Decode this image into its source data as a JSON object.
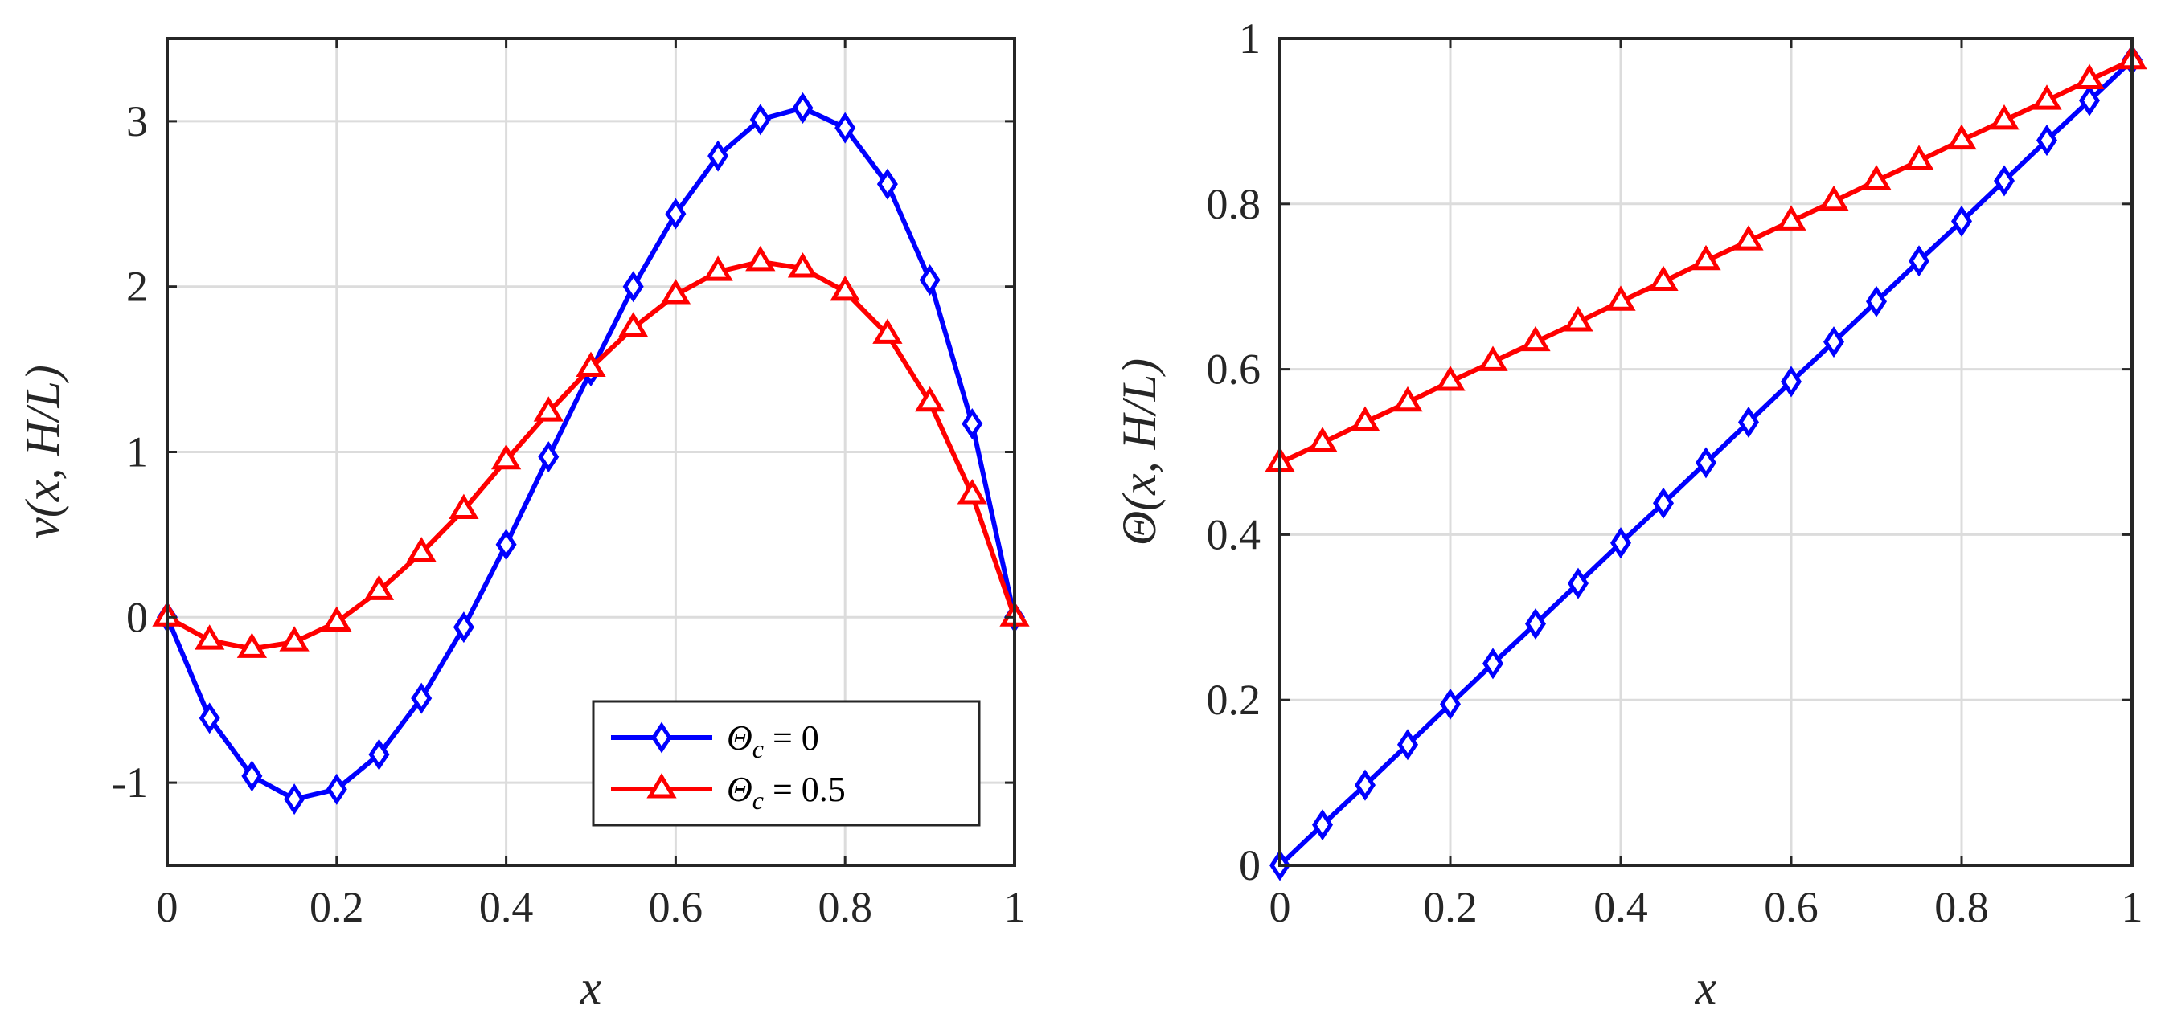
{
  "chart_data": [
    {
      "type": "line",
      "id": "left",
      "title": "",
      "xlabel": "x",
      "ylabel": "v(x, H/L)",
      "xlim": [
        0,
        1
      ],
      "ylim": [
        -1.5,
        3.5
      ],
      "xticks": [
        0,
        0.2,
        0.4,
        0.6,
        0.8,
        1
      ],
      "xtick_labels": [
        "0",
        "0.2",
        "0.4",
        "0.6",
        "0.8",
        "1"
      ],
      "yticks": [
        -1,
        0,
        1,
        2,
        3
      ],
      "ytick_labels": [
        "-1",
        "0",
        "1",
        "2",
        "3"
      ],
      "grid": true,
      "legend_position": "bottom-right",
      "x": [
        0,
        0.05,
        0.1,
        0.15,
        0.2,
        0.25,
        0.3,
        0.35,
        0.4,
        0.45,
        0.5,
        0.55,
        0.6,
        0.65,
        0.7,
        0.75,
        0.8,
        0.85,
        0.9,
        0.95,
        1
      ],
      "series": [
        {
          "name": "Θc = 0",
          "legend_base": "Θ",
          "legend_sub": "c",
          "legend_value": " = 0",
          "color": "#0000ff",
          "marker": "diamond",
          "values": [
            0,
            -0.61,
            -0.96,
            -1.1,
            -1.04,
            -0.83,
            -0.49,
            -0.06,
            0.44,
            0.97,
            1.49,
            2.0,
            2.44,
            2.79,
            3.01,
            3.08,
            2.96,
            2.62,
            2.04,
            1.17,
            0
          ]
        },
        {
          "name": "Θc = 0.5",
          "legend_base": "Θ",
          "legend_sub": "c",
          "legend_value": " = 0.5",
          "color": "#ff0000",
          "marker": "triangle",
          "values": [
            0,
            -0.14,
            -0.19,
            -0.15,
            -0.03,
            0.16,
            0.39,
            0.65,
            0.95,
            1.24,
            1.51,
            1.75,
            1.95,
            2.09,
            2.15,
            2.11,
            1.97,
            1.71,
            1.3,
            0.74,
            0
          ]
        }
      ]
    },
    {
      "type": "line",
      "id": "right",
      "title": "",
      "xlabel": "x",
      "ylabel": "Θ(x, H/L)",
      "xlim": [
        0,
        1
      ],
      "ylim": [
        0,
        1
      ],
      "xticks": [
        0,
        0.2,
        0.4,
        0.6,
        0.8,
        1
      ],
      "xtick_labels": [
        "0",
        "0.2",
        "0.4",
        "0.6",
        "0.8",
        "1"
      ],
      "yticks": [
        0,
        0.2,
        0.4,
        0.6,
        0.8,
        1
      ],
      "ytick_labels": [
        "0",
        "0.2",
        "0.4",
        "0.6",
        "0.8",
        "1"
      ],
      "grid": true,
      "x": [
        0,
        0.05,
        0.1,
        0.15,
        0.2,
        0.25,
        0.3,
        0.35,
        0.4,
        0.45,
        0.5,
        0.55,
        0.6,
        0.65,
        0.7,
        0.75,
        0.8,
        0.85,
        0.9,
        0.95,
        1
      ],
      "series": [
        {
          "name": "Θc = 0",
          "color": "#0000ff",
          "marker": "diamond",
          "values": [
            0,
            0.049,
            0.097,
            0.146,
            0.195,
            0.244,
            0.292,
            0.341,
            0.39,
            0.438,
            0.487,
            0.536,
            0.585,
            0.633,
            0.682,
            0.731,
            0.779,
            0.828,
            0.877,
            0.925,
            0.974
          ]
        },
        {
          "name": "Θc = 0.5",
          "color": "#ff0000",
          "marker": "triangle",
          "values": [
            0.487,
            0.511,
            0.536,
            0.56,
            0.585,
            0.609,
            0.633,
            0.657,
            0.682,
            0.706,
            0.731,
            0.755,
            0.779,
            0.803,
            0.828,
            0.852,
            0.877,
            0.901,
            0.925,
            0.95,
            0.974
          ]
        }
      ]
    }
  ]
}
